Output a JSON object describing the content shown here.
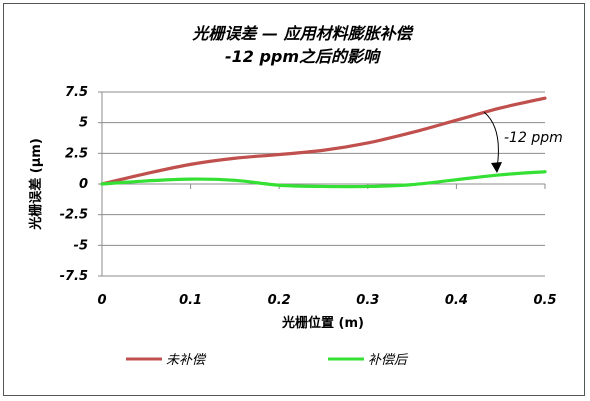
{
  "chart_data": {
    "type": "line",
    "title": "光栅误差 — 应用材料膨胀补偿",
    "subtitle": "-12 ppm之后的影响",
    "xlabel": "光栅位置 (m)",
    "ylabel": "光栅误差 (μm)",
    "xlim": [
      0,
      0.5
    ],
    "ylim": [
      -7.5,
      7.5
    ],
    "x_ticks": [
      "0",
      "0.1",
      "0.2",
      "0.3",
      "0.4",
      "0.5"
    ],
    "y_ticks": [
      "7.5",
      "5",
      "2.5",
      "0",
      "-2.5",
      "-5",
      "-7.5"
    ],
    "grid": "horizontal",
    "legend_position": "bottom",
    "annotation": "-12 ppm",
    "series": [
      {
        "name": "未补偿",
        "color": "#C0504D",
        "x": [
          0,
          0.05,
          0.1,
          0.15,
          0.2,
          0.25,
          0.3,
          0.35,
          0.4,
          0.45,
          0.5
        ],
        "values": [
          0,
          0.85,
          1.6,
          2.1,
          2.4,
          2.75,
          3.35,
          4.2,
          5.2,
          6.2,
          7.0
        ]
      },
      {
        "name": "补偿后",
        "color": "#33E033",
        "x": [
          0,
          0.05,
          0.1,
          0.15,
          0.2,
          0.25,
          0.3,
          0.35,
          0.4,
          0.45,
          0.5
        ],
        "values": [
          0,
          0.25,
          0.4,
          0.3,
          -0.1,
          -0.2,
          -0.2,
          -0.05,
          0.35,
          0.75,
          1.0
        ]
      }
    ]
  }
}
